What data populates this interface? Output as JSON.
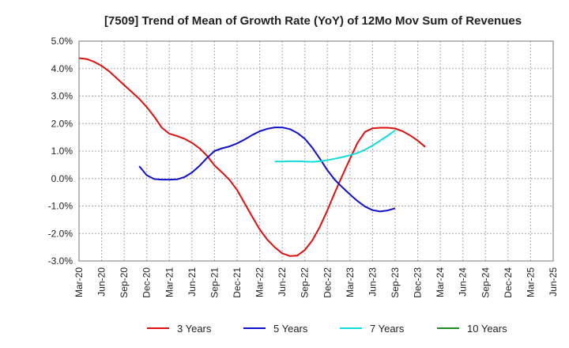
{
  "chart_data": {
    "type": "line",
    "title": "[7509]  Trend of Mean of Growth Rate (YoY) of 12Mo Mov Sum of Revenues",
    "xlabel": "",
    "ylabel": "",
    "ylim": [
      -3.0,
      5.0
    ],
    "y_ticks": [
      -3.0,
      -2.0,
      -1.0,
      0.0,
      1.0,
      2.0,
      3.0,
      4.0,
      5.0
    ],
    "y_tick_labels": [
      "-3.0%",
      "-2.0%",
      "-1.0%",
      "0.0%",
      "1.0%",
      "2.0%",
      "3.0%",
      "4.0%",
      "5.0%"
    ],
    "x_tick_labels": [
      "Mar-20",
      "Jun-20",
      "Sep-20",
      "Dec-20",
      "Mar-21",
      "Jun-21",
      "Sep-21",
      "Dec-21",
      "Mar-22",
      "Jun-22",
      "Sep-22",
      "Dec-22",
      "Mar-23",
      "Jun-23",
      "Sep-23",
      "Dec-23",
      "Mar-24",
      "Jun-24",
      "Sep-24",
      "Dec-24",
      "Mar-25",
      "Jun-25"
    ],
    "grid": true,
    "legend_position": "bottom",
    "series": [
      {
        "name": "3 Years",
        "color": "#dd1111",
        "start_index": 0,
        "values": [
          4.38,
          4.35,
          4.25,
          4.1,
          3.9,
          3.65,
          3.4,
          3.15,
          2.9,
          2.6,
          2.25,
          1.85,
          1.63,
          1.55,
          1.45,
          1.3,
          1.1,
          0.83,
          0.48,
          0.22,
          -0.05,
          -0.42,
          -0.9,
          -1.38,
          -1.85,
          -2.22,
          -2.5,
          -2.72,
          -2.82,
          -2.8,
          -2.6,
          -2.25,
          -1.75,
          -1.15,
          -0.5,
          0.12,
          0.72,
          1.3,
          1.7,
          1.83,
          1.85,
          1.85,
          1.82,
          1.72,
          1.57,
          1.38,
          1.15
        ]
      },
      {
        "name": "5 Years",
        "color": "#1111cc",
        "start_index": 8,
        "values": [
          0.45,
          0.12,
          -0.02,
          -0.04,
          -0.04,
          -0.03,
          0.05,
          0.22,
          0.46,
          0.75,
          1.0,
          1.1,
          1.17,
          1.28,
          1.42,
          1.58,
          1.72,
          1.81,
          1.86,
          1.86,
          1.8,
          1.66,
          1.45,
          1.12,
          0.72,
          0.3,
          -0.05,
          -0.32,
          -0.58,
          -0.82,
          -1.02,
          -1.15,
          -1.2,
          -1.16,
          -1.08
        ]
      },
      {
        "name": "7 Years",
        "color": "#11dddd",
        "start_index": 26,
        "values": [
          0.62,
          0.62,
          0.63,
          0.63,
          0.62,
          0.61,
          0.63,
          0.67,
          0.72,
          0.78,
          0.85,
          0.93,
          1.05,
          1.2,
          1.38,
          1.56,
          1.75
        ]
      },
      {
        "name": "10 Years",
        "color": "#228b22",
        "start_index": 0,
        "values": []
      }
    ]
  }
}
